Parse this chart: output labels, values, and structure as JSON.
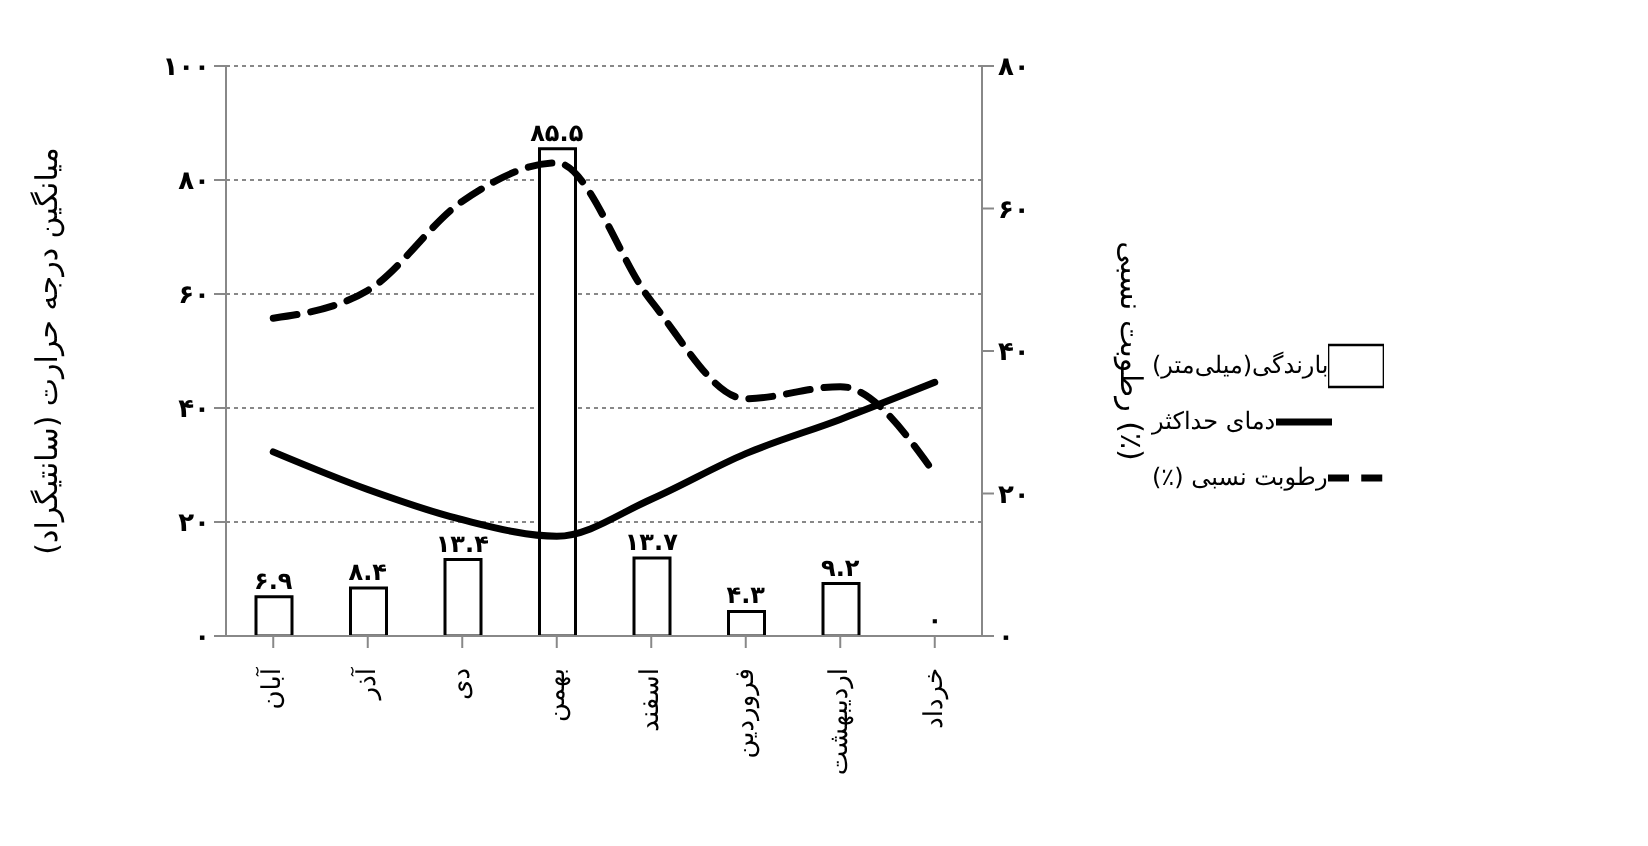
{
  "chart_data": {
    "type": "bar",
    "ylabel": "میانگین درجه حرارت (سانتیگراد)",
    "y2label": "رطوبت نسبی (٪)",
    "categories": [
      "آبان",
      "آذر",
      "دی",
      "بهمن",
      "اسفند",
      "فروردین",
      "اردیبهشت",
      "خرداد"
    ],
    "series": [
      {
        "name": "بارندگی(میلی‌متر)",
        "color": "#ffffff",
        "values": [
          6.9,
          8.4,
          13.4,
          85.5,
          13.7,
          4.3,
          9.2,
          0
        ],
        "value_labels": [
          "۶.۹",
          "۸.۴",
          "۱۳.۴",
          "۸۵.۵",
          "۱۳.۷",
          "۴.۳",
          "۹.۲",
          "۰"
        ]
      },
      {
        "name": "دمای حداکثر",
        "type": "line",
        "color": "#000000",
        "line_style": "solid",
        "values": [
          32.3,
          25.7,
          20.4,
          17.5,
          24,
          32,
          38,
          44.5
        ]
      },
      {
        "name": "رطوبت نسبی (٪)",
        "type": "line",
        "color": "#000000",
        "line_style": "dashed",
        "axis": "y2",
        "values": [
          44.6,
          48.5,
          61,
          66.4,
          47,
          33.3,
          35,
          22.8
        ]
      }
    ],
    "ylim": [
      0,
      100
    ],
    "yticks": [
      {
        "value": 0,
        "label": "۰"
      },
      {
        "value": 20,
        "label": "۲۰"
      },
      {
        "value": 40,
        "label": "۴۰"
      },
      {
        "value": 60,
        "label": "۶۰"
      },
      {
        "value": 80,
        "label": "۸۰"
      },
      {
        "value": 100,
        "label": "۱۰۰"
      }
    ],
    "y2lim": [
      0,
      80
    ],
    "y2ticks": [
      {
        "value": 0,
        "label": "۰"
      },
      {
        "value": 20,
        "label": "۲۰"
      },
      {
        "value": 40,
        "label": "۴۰"
      },
      {
        "value": 60,
        "label": "۶۰"
      },
      {
        "value": 80,
        "label": "۸۰"
      }
    ],
    "grid": "y",
    "legend": "right",
    "marker": "none"
  }
}
